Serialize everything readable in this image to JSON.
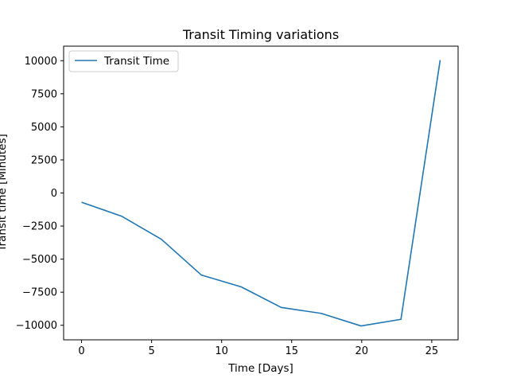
{
  "chart_data": {
    "type": "line",
    "title": "Transit Timing variations",
    "xlabel": "Time [Days]",
    "ylabel": "Transit time [Minutes]",
    "xlim": [
      -1.28,
      26.88
    ],
    "ylim": [
      -11100,
      11100
    ],
    "xticks": [
      0,
      5,
      10,
      15,
      20,
      25
    ],
    "yticks": [
      -10000,
      -7500,
      -5000,
      -2500,
      0,
      2500,
      5000,
      7500,
      10000
    ],
    "grid": false,
    "legend": {
      "placement": "top-left"
    },
    "series": [
      {
        "name": "Transit Time",
        "color": "#1f77b4",
        "x": [
          0.0,
          2.85,
          5.7,
          8.55,
          11.4,
          14.25,
          17.1,
          19.95,
          22.8,
          25.6
        ],
        "y": [
          -700,
          -1750,
          -3500,
          -6200,
          -7100,
          -8650,
          -9100,
          -10050,
          -9550,
          10050
        ]
      }
    ]
  }
}
